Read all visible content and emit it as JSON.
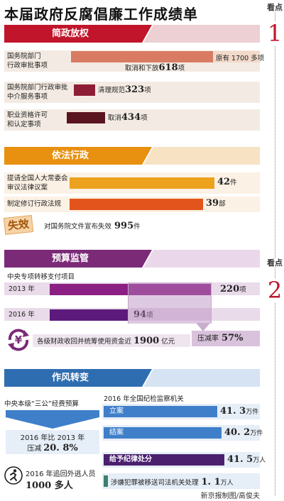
{
  "title": "本届政府反腐倡廉工作成绩单",
  "watch": [
    {
      "label": "看点",
      "num": "1"
    },
    {
      "label": "看点",
      "num": "2"
    }
  ],
  "colors": {
    "section1": "#c0152a",
    "section2": "#e8900f",
    "section3": "#7b2a77",
    "section4": "#2f6db1"
  },
  "sec1": {
    "name": "简政放权",
    "rows": [
      {
        "label": "国务院部门\n行政审批事项",
        "total_text": "原有 1700 多项",
        "action": "取消和下放",
        "value": "618",
        "unit": "项",
        "total": 1700,
        "amount": 618
      },
      {
        "label": "国务院部门行政审批\n中介服务事项",
        "action": "清理规范",
        "value": "323",
        "unit": "项",
        "amount": 323
      },
      {
        "label": "职业资格许可\n和认定事项",
        "action": "取消",
        "value": "434",
        "unit": "项",
        "amount": 434
      }
    ]
  },
  "sec2": {
    "name": "依法行政",
    "rows": [
      {
        "label": "提请全国人大常委会\n审议法律议案",
        "value": "42",
        "unit": "件",
        "amount": 42
      },
      {
        "label": "制定修订行政法规",
        "value": "39",
        "unit": "部",
        "amount": 39
      }
    ],
    "stamp": "失效",
    "stamp_text": "对国务院文件宣布失效",
    "stamp_value": "995",
    "stamp_unit": "件"
  },
  "sec3": {
    "name": "预算监管",
    "subtitle": "中央专项转移支付项目",
    "rows": [
      {
        "label": "2013 年",
        "value": "220",
        "unit": "项",
        "amount": 220
      },
      {
        "label": "2016 年",
        "value": "94",
        "unit": "项",
        "amount": 94
      }
    ],
    "reduction_label": "压减率",
    "reduction_value": "57%",
    "fund_text": "各级财政收回并统筹使用资金近",
    "fund_value": "1900",
    "fund_unit": "亿元",
    "yen": "¥"
  },
  "sec4": {
    "name": "作风转变",
    "left_title": "中央本级“三公”经费预算",
    "left_line1": "2016 年比 2013 年",
    "left_line2a": "压减",
    "left_line2b": "20. 8%",
    "fugitive_line1": "2016 年追回外逃人员",
    "fugitive_line2": "1000 多人",
    "right_title": "2016 年全国纪检监察机关",
    "rows": [
      {
        "label": "立案",
        "value": "41. 3",
        "unit": "万件",
        "amount": 41.3
      },
      {
        "label": "结案",
        "value": "40. 2",
        "unit": "万件",
        "amount": 40.2
      },
      {
        "label": "给予纪律处分",
        "value": "41. 5",
        "unit": "万人",
        "amount": 41.5
      },
      {
        "label": "涉嫌犯罪被移送司法机关处理",
        "value": "1. 1",
        "unit": "万人",
        "amount": 1.1
      }
    ]
  },
  "credit": "新京报制图/高俊夫",
  "chart_data": [
    {
      "type": "bar",
      "categories": [
        "国务院部门行政审批事项",
        "国务院部门行政审批中介服务事项",
        "职业资格许可和认定事项"
      ],
      "values": [
        618,
        323,
        434
      ]
    },
    {
      "type": "bar",
      "categories": [
        "提请全国人大常委会审议法律议案",
        "制定修订行政法规"
      ],
      "values": [
        42,
        39
      ]
    },
    {
      "type": "bar",
      "categories": [
        "2013 年",
        "2016 年"
      ],
      "values": [
        220,
        94
      ]
    },
    {
      "type": "bar",
      "categories": [
        "立案",
        "结案",
        "给予纪律处分",
        "涉嫌犯罪被移送司法机关处理"
      ],
      "values": [
        41.3,
        40.2,
        41.5,
        1.1
      ]
    }
  ]
}
